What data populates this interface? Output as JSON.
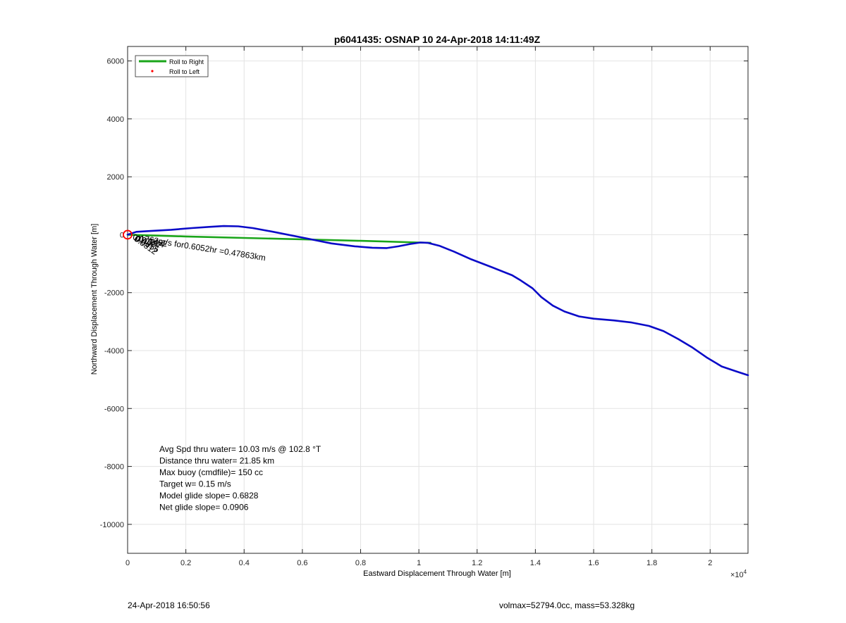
{
  "chart_data": {
    "type": "line",
    "title": "p6041435: OSNAP 10 24-Apr-2018 14:11:49Z",
    "xlabel": "Eastward Displacement Through Water [m]",
    "ylabel": "Northward Displacement Through Water [m]",
    "x_exponent_label": "×10",
    "x_exponent_power": "4",
    "xlim": [
      0,
      21300
    ],
    "ylim": [
      -11000,
      6500
    ],
    "x_ticks": [
      0,
      2000,
      4000,
      6000,
      8000,
      10000,
      12000,
      14000,
      16000,
      18000,
      20000
    ],
    "x_tick_labels": [
      "0",
      "0.2",
      "0.4",
      "0.6",
      "0.8",
      "1",
      "1.2",
      "1.4",
      "1.6",
      "1.8",
      "2"
    ],
    "y_ticks": [
      6000,
      4000,
      2000,
      0,
      -2000,
      -4000,
      -6000,
      -8000,
      -10000
    ],
    "y_tick_labels": [
      "6000",
      "4000",
      "2000",
      "0",
      "-2000",
      "-4000",
      "-6000",
      "-8000",
      "-10000"
    ],
    "grid": true,
    "legend_position": "top-left",
    "legend": [
      {
        "label": "Roll to Right",
        "color": "#1aa51a",
        "marker": "line"
      },
      {
        "label": "Roll to Left",
        "color": "#ff0000",
        "marker": "dot"
      }
    ],
    "series": [
      {
        "color": "#0b0bc8",
        "x": [
          0,
          300,
          800,
          1500,
          2200,
          2800,
          3300,
          3800,
          4300,
          5000,
          6000,
          7000,
          7800,
          8400,
          8900,
          9300,
          9700,
          10050,
          10300,
          10700,
          11200,
          11800,
          12500,
          13200,
          13500,
          13900,
          14200,
          14600,
          15000,
          15500,
          16000,
          16700,
          17300,
          17900,
          18400,
          18900,
          19400,
          19900,
          20400,
          20900,
          21300
        ],
        "y": [
          0,
          100,
          130,
          170,
          230,
          270,
          300,
          290,
          230,
          100,
          -100,
          -300,
          -400,
          -450,
          -460,
          -400,
          -320,
          -270,
          -280,
          -380,
          -580,
          -850,
          -1120,
          -1400,
          -1580,
          -1850,
          -2150,
          -2450,
          -2650,
          -2820,
          -2900,
          -2960,
          -3030,
          -3150,
          -3330,
          -3600,
          -3900,
          -4250,
          -4550,
          -4720,
          -4850
        ]
      },
      {
        "color": "#1aa51a",
        "x": [
          0,
          2000,
          4000,
          6000,
          8000,
          10000,
          10400
        ],
        "y": [
          0,
          -60,
          -110,
          -160,
          -210,
          -270,
          -280
        ]
      }
    ],
    "start_marker": {
      "x": 0,
      "y": 0,
      "color": "#ff0000"
    },
    "annotations": [
      {
        "text": "0.1762m/s for0.6052hr =0.47863km",
        "x": 0,
        "y": -30,
        "rotation_deg": 9
      },
      {
        "text": "0.1462",
        "x": 300,
        "y": -130,
        "rotation_deg": 9
      },
      {
        "text": "0.1214",
        "x": 200,
        "y": -90,
        "rotation_deg": 14
      },
      {
        "text": "0.1037",
        "x": 100,
        "y": -60,
        "rotation_deg": 18
      },
      {
        "text": "0.0955",
        "x": 60,
        "y": -50,
        "rotation_deg": 28
      },
      {
        "text": "0.0812",
        "x": 30,
        "y": -40,
        "rotation_deg": 35
      }
    ],
    "stats_text": [
      "Avg Spd thru water= 10.03 m/s @ 102.8 °T",
      "Distance thru water= 21.85 km",
      "Max buoy (cmdfile)= 150 cc",
      "Target w= 0.15 m/s",
      "Model glide slope= 0.6828",
      "Net glide slope= 0.0906"
    ]
  },
  "footer": {
    "timestamp": "24-Apr-2018 16:50:56",
    "volmax_mass": "volmax=52794.0cc, mass=53.328kg"
  }
}
